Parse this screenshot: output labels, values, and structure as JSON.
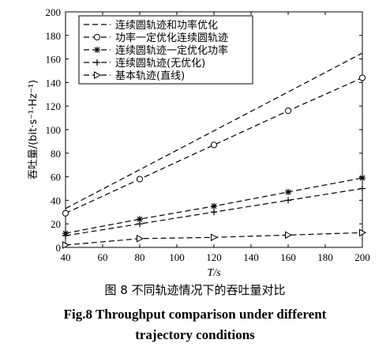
{
  "chart_data": {
    "type": "line",
    "xlabel": "T/s",
    "ylabel": "吞吐量/(bit·s⁻¹·Hz⁻¹)",
    "xlim": [
      40,
      200
    ],
    "ylim": [
      0,
      200
    ],
    "xticks": [
      "40",
      "60",
      "80",
      "100",
      "120",
      "140",
      "160",
      "180",
      "200"
    ],
    "yticks": [
      "0",
      "20",
      "40",
      "60",
      "80",
      "100",
      "120",
      "140",
      "160",
      "180",
      "200"
    ],
    "grid": false,
    "legend_position": "top-left",
    "series": [
      {
        "name": "连续圆轨迹和功率优化",
        "marker": "none",
        "x": [
          40,
          80,
          120,
          160,
          200
        ],
        "y": [
          33,
          66,
          99,
          132,
          165
        ]
      },
      {
        "name": "功率一定优化连续圆轨迹",
        "marker": "circle",
        "x": [
          40,
          80,
          120,
          160,
          200
        ],
        "y": [
          29,
          58,
          87,
          116,
          144
        ]
      },
      {
        "name": "连续圆轨迹一定优化功率",
        "marker": "asterisk",
        "x": [
          40,
          80,
          120,
          160,
          200
        ],
        "y": [
          12,
          24,
          35,
          47,
          59
        ]
      },
      {
        "name": "连续圆轨迹(无优化)",
        "marker": "plus",
        "x": [
          40,
          80,
          120,
          160,
          200
        ],
        "y": [
          10,
          20,
          30,
          40,
          50
        ]
      },
      {
        "name": "基本轨迹(直线)",
        "marker": "triangle-right",
        "x": [
          40,
          80,
          120,
          160,
          200
        ],
        "y": [
          2,
          7.5,
          8.5,
          10.5,
          12.5
        ]
      }
    ]
  },
  "caption": {
    "cn": "图 8   不同轨迹情况下的吞吐量对比",
    "en_line1": "Fig.8    Throughput comparison under different",
    "en_line2": "trajectory conditions"
  }
}
